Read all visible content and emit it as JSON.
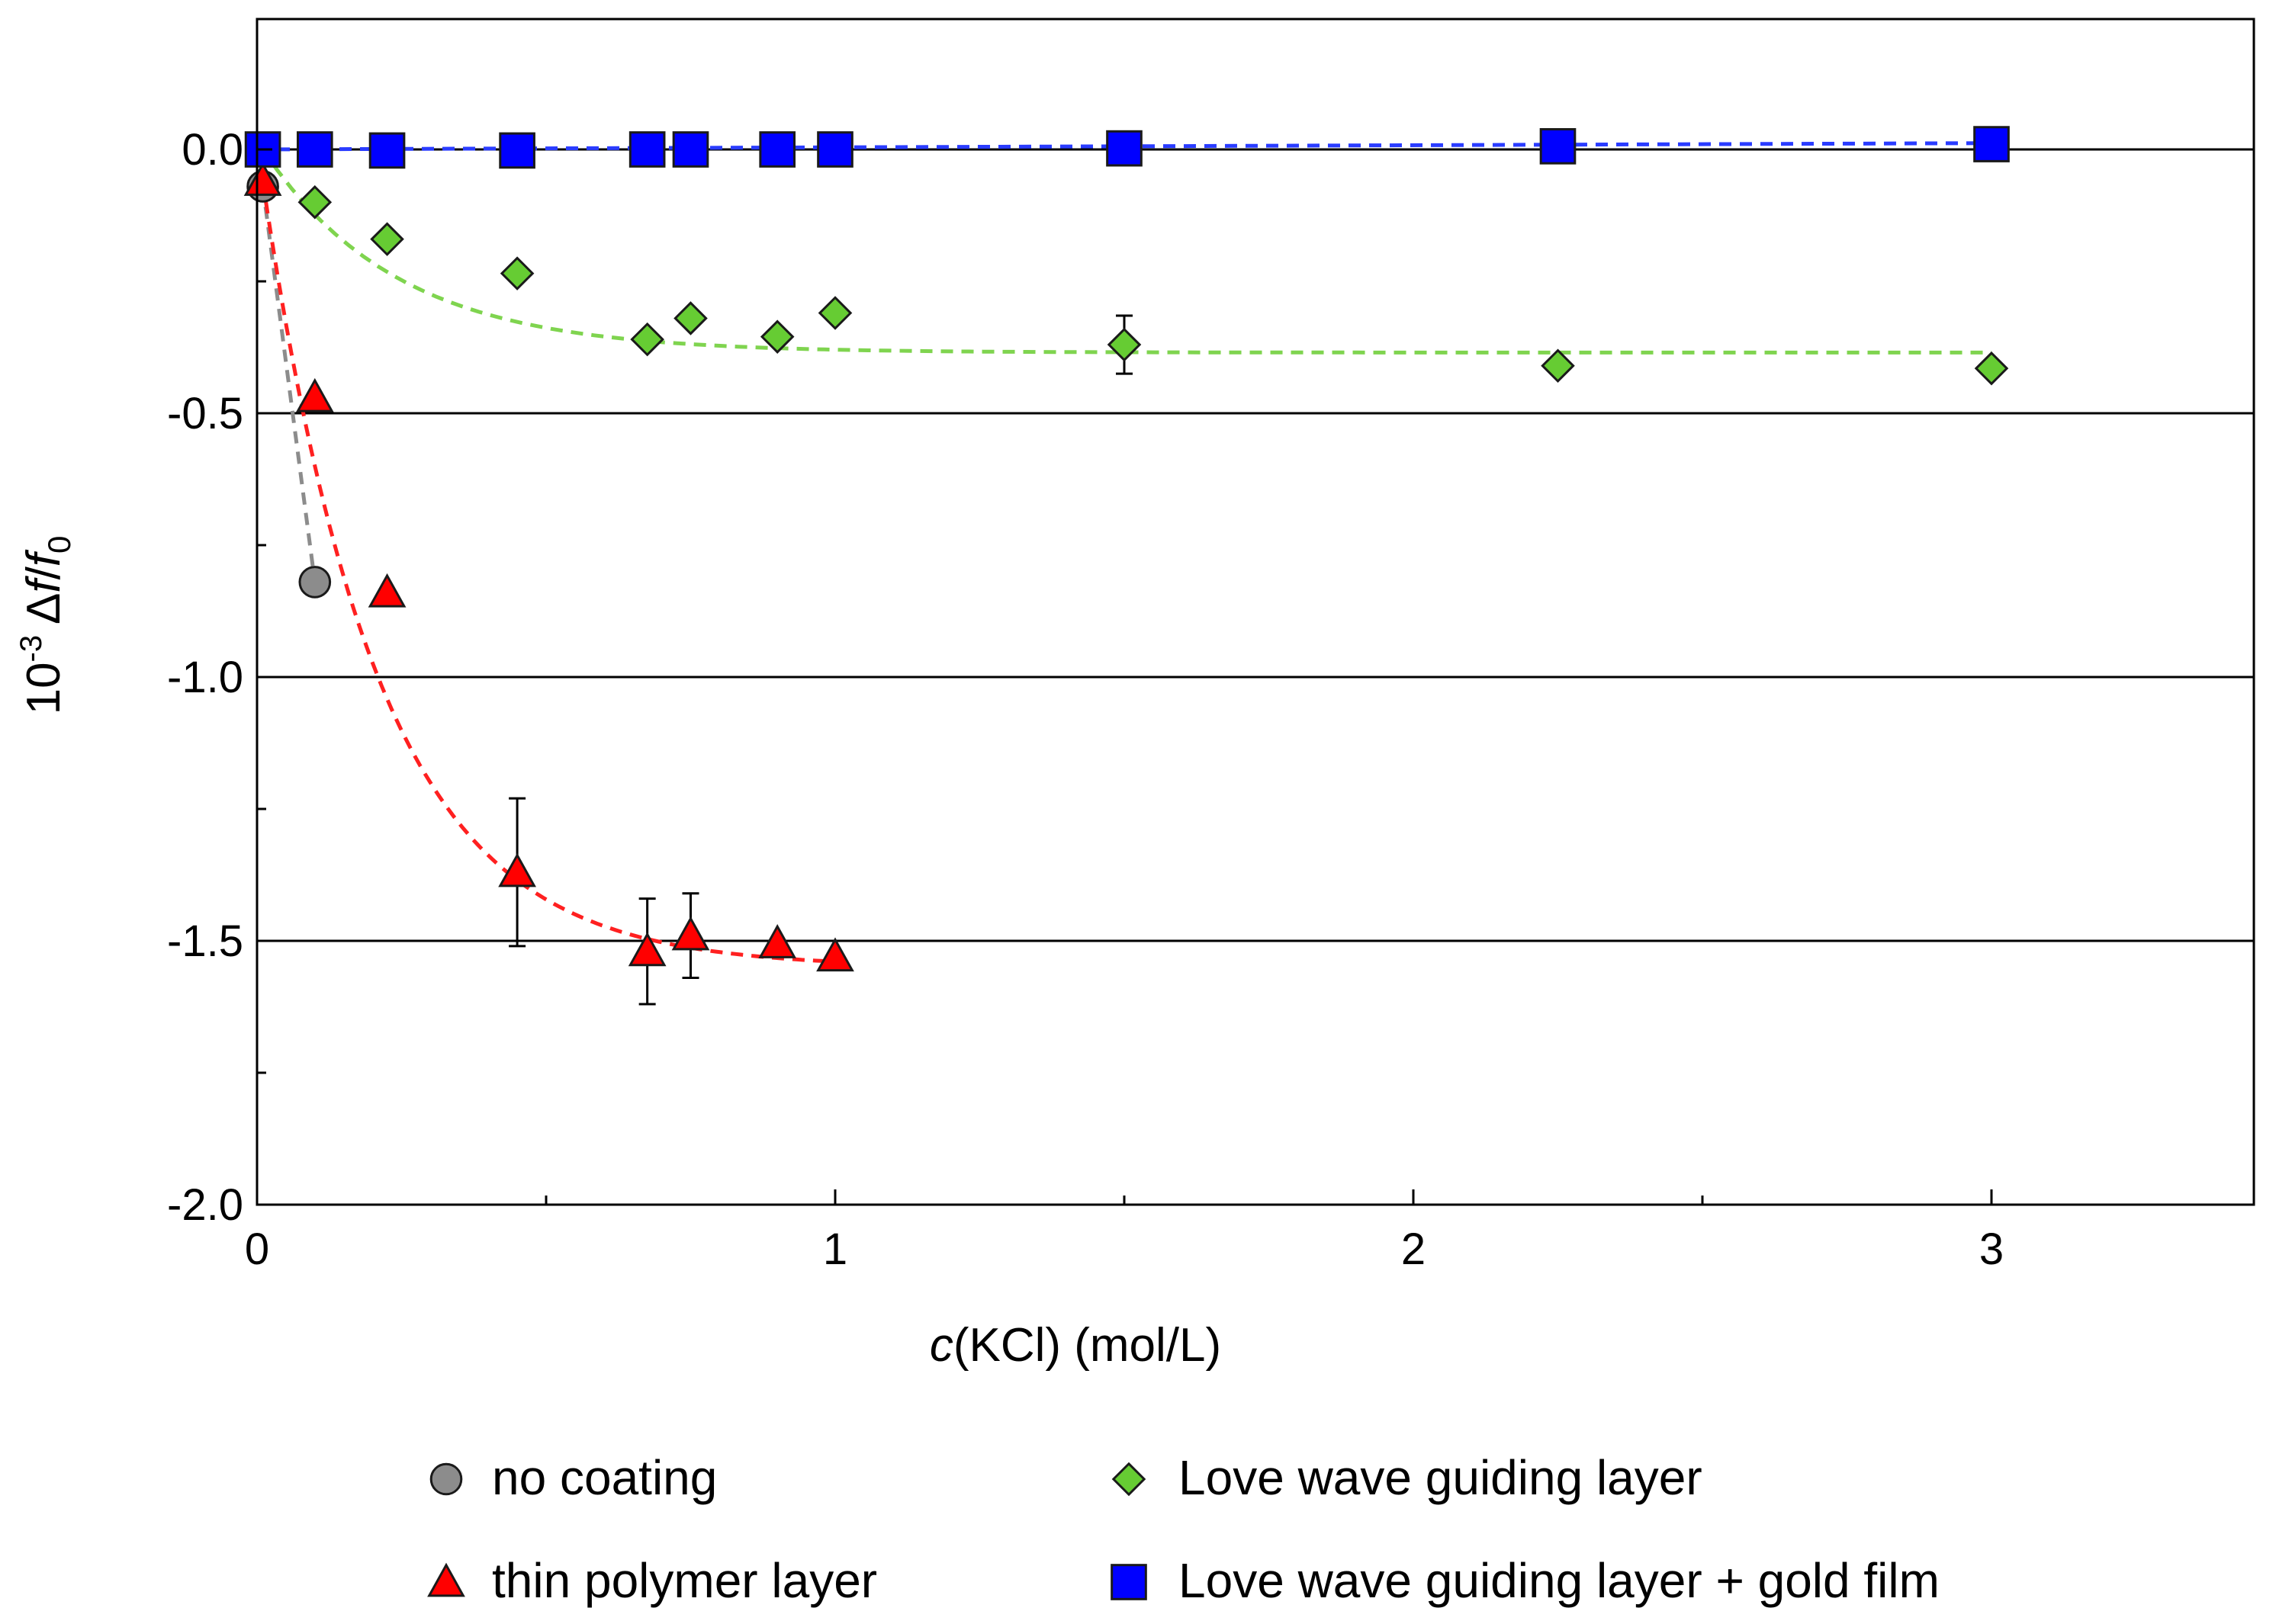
{
  "chart_data": {
    "type": "scatter",
    "title": "",
    "xlabel": {
      "italic": "c",
      "rest": "(KCl) (mol/L)"
    },
    "ylabel": {
      "prefix": "10",
      "exp": "-3",
      "delta": " Δ",
      "f": "f",
      "slash": "/",
      "f0": "f",
      "sub": "0"
    },
    "xlim": [
      0,
      3.5
    ],
    "ylim": [
      -2.0,
      0.25
    ],
    "xticks": [
      0,
      1,
      2,
      3
    ],
    "xtick_labels": [
      "0",
      "1",
      "2",
      "3"
    ],
    "xminor": [
      0.5,
      1.5,
      2.5
    ],
    "yticks": [
      0.0,
      -0.5,
      -1.0,
      -1.5,
      -2.0
    ],
    "ytick_labels": [
      "0.0",
      "-0.5",
      "-1.0",
      "-1.5",
      "-2.0"
    ],
    "yminor": [
      -0.25,
      -0.75,
      -1.25,
      -1.75
    ],
    "gridlines_y": [
      0.0,
      -0.5,
      -1.0,
      -1.5
    ],
    "series": [
      {
        "name": "no coating",
        "marker": "circle",
        "color": "#8c8c8c",
        "line_color": "#8c8c8c",
        "x": [
          0.01,
          0.1
        ],
        "y": [
          -0.07,
          -0.82
        ],
        "fit": [
          [
            0.01,
            -0.07
          ],
          [
            0.1,
            -0.82
          ]
        ]
      },
      {
        "name": "thin polymer layer",
        "marker": "triangle",
        "color": "#ff0000",
        "line_color": "#ff2020",
        "x": [
          0.01,
          0.1,
          0.225,
          0.45,
          0.675,
          0.75,
          0.9,
          1.0
        ],
        "y": [
          -0.06,
          -0.47,
          -0.84,
          -1.37,
          -1.52,
          -1.49,
          -1.505,
          -1.53
        ],
        "err": [
          0,
          0,
          0,
          0.14,
          0.1,
          0.08,
          0,
          0
        ],
        "fit_model": {
          "a": -1.55,
          "k": 5.0,
          "x0": 0.01,
          "y0": -0.06,
          "xmax": 1.0
        }
      },
      {
        "name": "Love wave guiding layer",
        "marker": "diamond",
        "color": "#66cc33",
        "line_color": "#7fd44f",
        "x": [
          0.01,
          0.1,
          0.225,
          0.45,
          0.675,
          0.75,
          0.9,
          1.0,
          1.5,
          2.25,
          3.0
        ],
        "y": [
          0.0,
          -0.1,
          -0.17,
          -0.235,
          -0.36,
          -0.32,
          -0.355,
          -0.31,
          -0.37,
          -0.41,
          -0.415
        ],
        "err": [
          0,
          0,
          0,
          0,
          0,
          0,
          0,
          0,
          0.055,
          0,
          0
        ],
        "fit_model": {
          "a": -0.385,
          "k": 4.3,
          "x0": 0.01,
          "y0": 0.0,
          "xmax": 3.0
        }
      },
      {
        "name": "Love wave guiding layer + gold film",
        "marker": "square",
        "color": "#0000ff",
        "line_color": "#2a3cff",
        "x": [
          0.01,
          0.1,
          0.225,
          0.45,
          0.675,
          0.75,
          0.9,
          1.0,
          1.5,
          2.25,
          3.0
        ],
        "y": [
          0.0,
          0.0,
          -0.002,
          -0.002,
          0.0,
          0.0,
          0.0,
          0.0,
          0.002,
          0.006,
          0.01
        ],
        "err": [
          0,
          0,
          0,
          0,
          0,
          0,
          0,
          0,
          0,
          0,
          0
        ],
        "fit": [
          [
            0.0,
            0.0
          ],
          [
            3.0,
            0.012
          ]
        ]
      }
    ],
    "legend": {
      "placement": "bottom",
      "items": [
        {
          "label": "no coating",
          "marker": "circle",
          "color": "#8c8c8c"
        },
        {
          "label": "Love wave guiding layer",
          "marker": "diamond",
          "color": "#66cc33"
        },
        {
          "label": "thin polymer layer",
          "marker": "triangle",
          "color": "#ff0000"
        },
        {
          "label": "Love wave guiding layer + gold film",
          "marker": "square",
          "color": "#0000ff"
        }
      ]
    }
  }
}
